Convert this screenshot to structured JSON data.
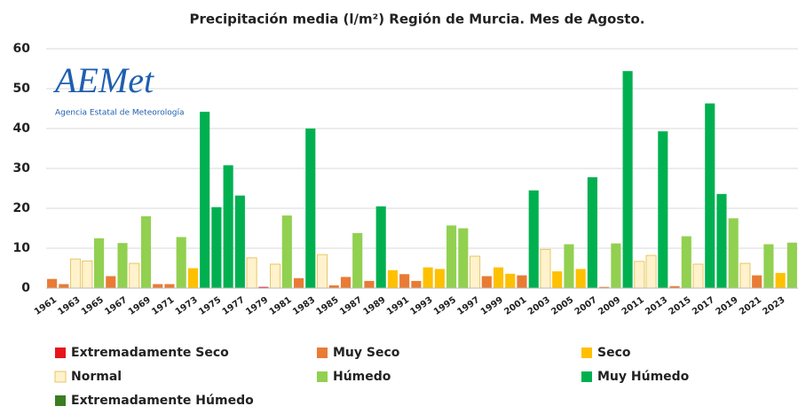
{
  "chart_data": {
    "type": "bar",
    "title": "Precipitación media (l/m²) Región de Murcia. Mes de Agosto.",
    "logo": {
      "name": "AEMet",
      "subtitle": "Agencia Estatal de Meteorología"
    },
    "categories": [
      "1961",
      null,
      "1963",
      null,
      "1965",
      null,
      "1967",
      null,
      "1969",
      null,
      "1971",
      null,
      "1973",
      null,
      "1975",
      null,
      "1977",
      null,
      "1979",
      null,
      "1981",
      null,
      "1983",
      null,
      "1985",
      null,
      "1987",
      null,
      "1989",
      null,
      "1991",
      null,
      "1993",
      null,
      "1995",
      null,
      "1997",
      null,
      "1999",
      null,
      "2001",
      null,
      "2003",
      null,
      "2005",
      null,
      "2007",
      null,
      "2009",
      null,
      "2011",
      null,
      "2013",
      null,
      "2015",
      null,
      "2017",
      null,
      "2019",
      null,
      "2021",
      null,
      "2023",
      null
    ],
    "values": [
      2.3,
      1.0,
      7.3,
      6.8,
      12.5,
      3.0,
      11.3,
      6.2,
      18.0,
      1.0,
      1.0,
      12.8,
      5.0,
      44.2,
      20.3,
      30.8,
      23.2,
      7.6,
      0.3,
      6.0,
      18.2,
      2.5,
      40.0,
      8.4,
      0.7,
      2.8,
      13.8,
      1.8,
      20.5,
      4.5,
      3.5,
      1.8,
      5.2,
      4.8,
      15.7,
      15.0,
      8.0,
      3.0,
      5.2,
      3.6,
      3.2,
      24.5,
      9.7,
      4.2,
      11.0,
      4.8,
      27.8,
      0.3,
      11.2,
      54.4,
      6.7,
      8.2,
      39.3,
      0.5,
      13.0,
      6.0,
      46.3,
      23.6,
      17.5,
      6.2,
      3.2,
      11.0,
      3.8,
      11.4
    ],
    "bar_colors": [
      "#e97b35",
      "#e97b35",
      "#fff2cc",
      "#fff2cc",
      "#92d050",
      "#e97b35",
      "#92d050",
      "#fff2cc",
      "#92d050",
      "#e97b35",
      "#e97b35",
      "#92d050",
      "#ffc000",
      "#00b050",
      "#00b050",
      "#00b050",
      "#00b050",
      "#fff2cc",
      "#e8141c",
      "#fff2cc",
      "#92d050",
      "#e97b35",
      "#00b050",
      "#fff2cc",
      "#e97b35",
      "#e97b35",
      "#92d050",
      "#e97b35",
      "#00b050",
      "#ffc000",
      "#e97b35",
      "#e97b35",
      "#ffc000",
      "#ffc000",
      "#92d050",
      "#92d050",
      "#fff2cc",
      "#e97b35",
      "#ffc000",
      "#ffc000",
      "#e97b35",
      "#00b050",
      "#fff2cc",
      "#ffc000",
      "#92d050",
      "#ffc000",
      "#00b050",
      "#e97b35",
      "#92d050",
      "#00b050",
      "#fff2cc",
      "#fff2cc",
      "#00b050",
      "#e97b35",
      "#92d050",
      "#fff2cc",
      "#00b050",
      "#00b050",
      "#92d050",
      "#fff2cc",
      "#e97b35",
      "#92d050",
      "#ffc000",
      "#92d050"
    ],
    "legend": [
      {
        "name": "Extremadamente Seco",
        "color": "#e8141c"
      },
      {
        "name": "Muy Seco",
        "color": "#e97b35"
      },
      {
        "name": "Seco",
        "color": "#ffc000"
      },
      {
        "name": "Normal",
        "color": "#fff2cc"
      },
      {
        "name": "Húmedo",
        "color": "#92d050"
      },
      {
        "name": "Muy Húmedo",
        "color": "#00b050"
      },
      {
        "name": "Extremadamente Húmedo",
        "color": "#3a7d22"
      }
    ],
    "ylim": [
      0,
      60
    ],
    "yticks": [
      0,
      10,
      20,
      30,
      40,
      50,
      60
    ],
    "grid": true
  }
}
